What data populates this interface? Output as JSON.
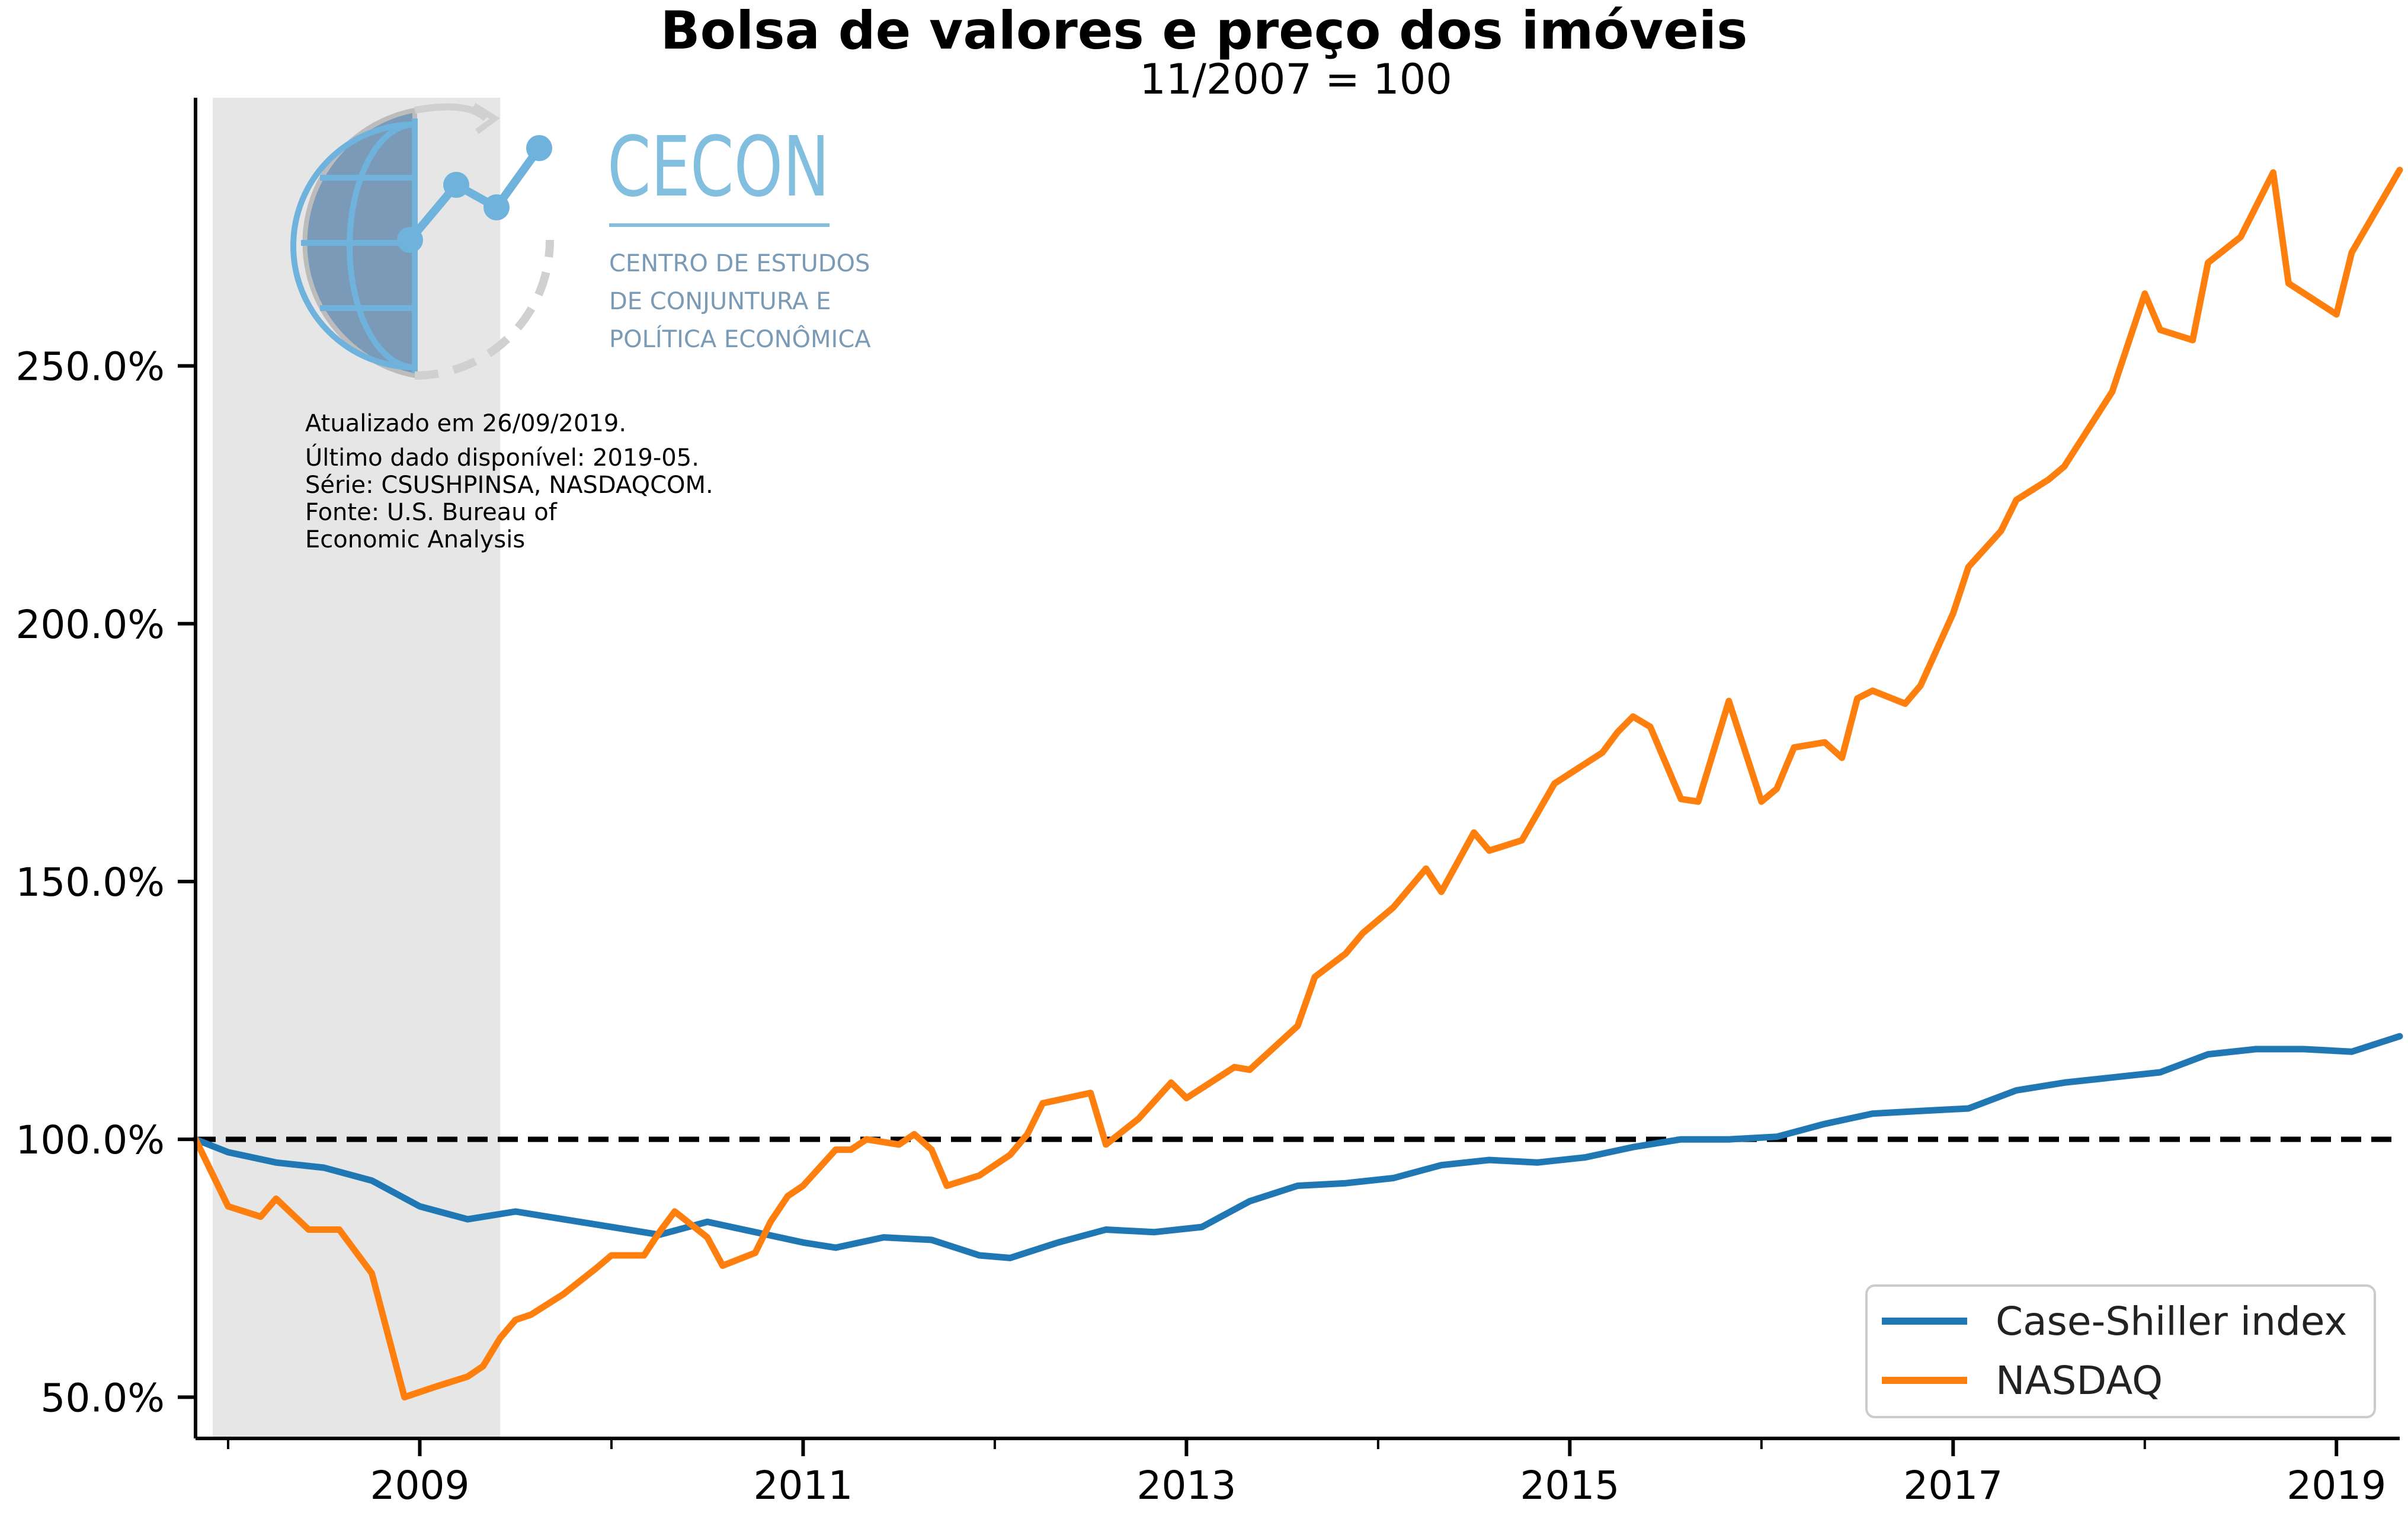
{
  "title": "Bolsa de valores e preço dos imóveis",
  "subtitle": "11/2007 = 100",
  "logo": {
    "name": "CECON",
    "line1": "CENTRO DE ESTUDOS",
    "line2": "DE CONJUNTURA E",
    "line3": "POLÍTICA ECONÔMICA"
  },
  "notes": [
    "Atualizado em 26/09/2019.",
    "Último dado disponível: 2019-05.",
    "Série: CSUSHPINSA, NASDAQCOM.",
    "Fonte: U.S. Bureau of",
    "Economic Analysis"
  ],
  "colors": {
    "case_shiller": "#1f77b4",
    "nasdaq": "#ff7f0e",
    "recession_shade": "#e6e6e6",
    "reference_line": "#000000"
  },
  "chart_data": {
    "type": "line",
    "x_unit": "year",
    "xlim": [
      2007.83,
      2019.33
    ],
    "ylim": [
      42,
      302
    ],
    "yticks": [
      50,
      100,
      150,
      200,
      250
    ],
    "ytick_labels": [
      "50.0%",
      "100.0%",
      "150.0%",
      "200.0%",
      "250.0%"
    ],
    "xticks_labeled": [
      2009,
      2011,
      2013,
      2015,
      2017,
      2019
    ],
    "xtick_labels": [
      "2009",
      "2011",
      "2013",
      "2015",
      "2017",
      "2019"
    ],
    "xticks_minor": [
      2008,
      2010,
      2012,
      2014,
      2016,
      2018
    ],
    "reference_line": 100,
    "shaded_region": [
      2007.92,
      2009.42
    ],
    "legend_position": "lower-right",
    "series": [
      {
        "name": "Case-Shiller index",
        "points": [
          [
            2007.83,
            100
          ],
          [
            2008.0,
            97.5
          ],
          [
            2008.25,
            95.5
          ],
          [
            2008.5,
            94.5
          ],
          [
            2008.75,
            92
          ],
          [
            2009.0,
            87
          ],
          [
            2009.25,
            84.5
          ],
          [
            2009.5,
            86
          ],
          [
            2009.75,
            84.5
          ],
          [
            2010.0,
            83
          ],
          [
            2010.25,
            81.5
          ],
          [
            2010.5,
            84
          ],
          [
            2010.75,
            82
          ],
          [
            2011.0,
            80
          ],
          [
            2011.17,
            79
          ],
          [
            2011.42,
            81
          ],
          [
            2011.67,
            80.5
          ],
          [
            2011.92,
            77.5
          ],
          [
            2012.08,
            77
          ],
          [
            2012.33,
            80
          ],
          [
            2012.58,
            82.5
          ],
          [
            2012.83,
            82
          ],
          [
            2013.08,
            83
          ],
          [
            2013.33,
            88
          ],
          [
            2013.58,
            91
          ],
          [
            2013.83,
            91.5
          ],
          [
            2014.08,
            92.5
          ],
          [
            2014.33,
            95
          ],
          [
            2014.58,
            96
          ],
          [
            2014.83,
            95.5
          ],
          [
            2015.08,
            96.5
          ],
          [
            2015.33,
            98.5
          ],
          [
            2015.58,
            100
          ],
          [
            2015.83,
            100
          ],
          [
            2016.08,
            100.5
          ],
          [
            2016.33,
            103
          ],
          [
            2016.58,
            105
          ],
          [
            2016.83,
            105.5
          ],
          [
            2017.08,
            106
          ],
          [
            2017.33,
            109.5
          ],
          [
            2017.58,
            111
          ],
          [
            2017.83,
            112
          ],
          [
            2018.08,
            113
          ],
          [
            2018.33,
            116.5
          ],
          [
            2018.58,
            117.5
          ],
          [
            2018.83,
            117.5
          ],
          [
            2019.08,
            117
          ],
          [
            2019.33,
            120
          ]
        ]
      },
      {
        "name": "NASDAQ",
        "points": [
          [
            2007.83,
            100
          ],
          [
            2008.0,
            87
          ],
          [
            2008.17,
            85
          ],
          [
            2008.25,
            88.5
          ],
          [
            2008.42,
            82.5
          ],
          [
            2008.58,
            82.5
          ],
          [
            2008.75,
            74
          ],
          [
            2008.92,
            50
          ],
          [
            2009.08,
            52
          ],
          [
            2009.25,
            54
          ],
          [
            2009.33,
            56
          ],
          [
            2009.42,
            61.5
          ],
          [
            2009.5,
            65
          ],
          [
            2009.58,
            66
          ],
          [
            2009.75,
            70
          ],
          [
            2009.92,
            75
          ],
          [
            2010.0,
            77.5
          ],
          [
            2010.17,
            77.5
          ],
          [
            2010.25,
            82
          ],
          [
            2010.33,
            86
          ],
          [
            2010.5,
            81
          ],
          [
            2010.58,
            75.5
          ],
          [
            2010.75,
            78
          ],
          [
            2010.83,
            84
          ],
          [
            2010.92,
            89
          ],
          [
            2011.0,
            91
          ],
          [
            2011.17,
            98
          ],
          [
            2011.25,
            98
          ],
          [
            2011.33,
            100
          ],
          [
            2011.5,
            99
          ],
          [
            2011.58,
            101
          ],
          [
            2011.67,
            98
          ],
          [
            2011.75,
            91
          ],
          [
            2011.92,
            93
          ],
          [
            2012.08,
            97
          ],
          [
            2012.17,
            101
          ],
          [
            2012.25,
            107
          ],
          [
            2012.5,
            109
          ],
          [
            2012.58,
            99
          ],
          [
            2012.75,
            104
          ],
          [
            2012.92,
            111
          ],
          [
            2013.0,
            108
          ],
          [
            2013.25,
            114
          ],
          [
            2013.33,
            113.5
          ],
          [
            2013.58,
            122
          ],
          [
            2013.67,
            131.5
          ],
          [
            2013.83,
            136
          ],
          [
            2013.92,
            140
          ],
          [
            2014.08,
            145
          ],
          [
            2014.25,
            152.5
          ],
          [
            2014.33,
            148
          ],
          [
            2014.5,
            159.5
          ],
          [
            2014.58,
            156
          ],
          [
            2014.75,
            158
          ],
          [
            2014.92,
            169
          ],
          [
            2015.17,
            175
          ],
          [
            2015.25,
            179
          ],
          [
            2015.33,
            182
          ],
          [
            2015.42,
            180
          ],
          [
            2015.58,
            166
          ],
          [
            2015.67,
            165.5
          ],
          [
            2015.83,
            185
          ],
          [
            2016.0,
            165.5
          ],
          [
            2016.08,
            168
          ],
          [
            2016.17,
            176
          ],
          [
            2016.33,
            177
          ],
          [
            2016.42,
            174
          ],
          [
            2016.5,
            185.5
          ],
          [
            2016.58,
            187
          ],
          [
            2016.75,
            184.5
          ],
          [
            2016.83,
            188
          ],
          [
            2017.0,
            202
          ],
          [
            2017.08,
            211
          ],
          [
            2017.25,
            218
          ],
          [
            2017.33,
            224
          ],
          [
            2017.5,
            228
          ],
          [
            2017.58,
            230.5
          ],
          [
            2017.83,
            245
          ],
          [
            2018.0,
            264
          ],
          [
            2018.08,
            257
          ],
          [
            2018.25,
            255
          ],
          [
            2018.33,
            270
          ],
          [
            2018.5,
            275
          ],
          [
            2018.67,
            287.5
          ],
          [
            2018.75,
            266
          ],
          [
            2019.0,
            260
          ],
          [
            2019.08,
            272
          ],
          [
            2019.33,
            288
          ]
        ]
      }
    ]
  }
}
